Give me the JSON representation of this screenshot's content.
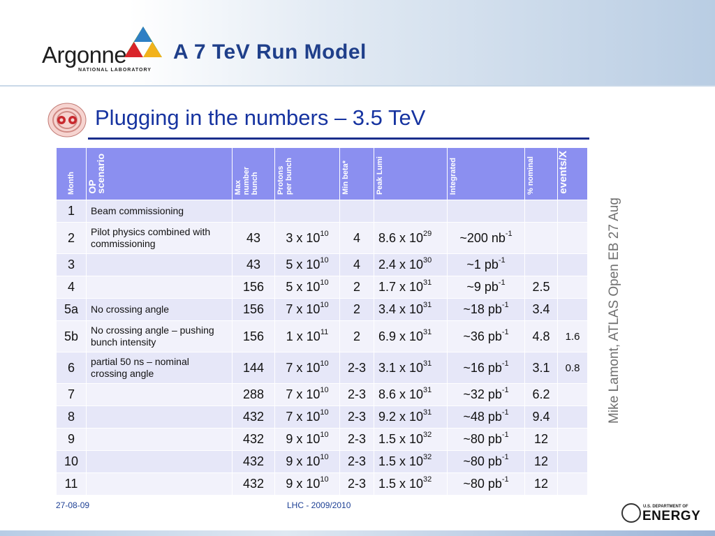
{
  "header": {
    "logo": {
      "word": "Argonne",
      "sub": "NATIONAL LABORATORY"
    },
    "title": "A 7 TeV Run Model"
  },
  "slide": {
    "subtitle": "Plugging in the numbers – 3.5 TeV"
  },
  "table": {
    "headers": [
      "Month",
      "OP scenario",
      "Max number bunch",
      "Protons per bunch",
      "Min beta*",
      "Peak Lumi",
      "Integrated",
      "% nominal",
      "events/X"
    ],
    "header_lines": [
      [
        "Month"
      ],
      [
        "OP",
        "scenario"
      ],
      [
        "Max",
        "number",
        "bunch"
      ],
      [
        "Protons",
        "per bunch"
      ],
      [
        "Min beta*"
      ],
      [
        "Peak Lumi"
      ],
      [
        "Integrated"
      ],
      [
        "% nominal"
      ],
      [
        "events/X"
      ]
    ],
    "rows": [
      {
        "month": "1",
        "scenario": "Beam commissioning",
        "max": "",
        "prot_m": "",
        "prot_e": "",
        "beta": "",
        "lumi_m": "",
        "lumi_e": "",
        "int_v": "",
        "int_u": "",
        "int_e": "",
        "pct": "",
        "ev": ""
      },
      {
        "month": "2",
        "scenario": "Pilot physics combined with commissioning",
        "max": "43",
        "prot_m": "3 x 10",
        "prot_e": "10",
        "beta": "4",
        "lumi_m": "8.6 x 10",
        "lumi_e": "29",
        "int_v": "~200 nb",
        "int_u": "",
        "int_e": "-1",
        "pct": "",
        "ev": ""
      },
      {
        "month": "3",
        "scenario": "",
        "max": "43",
        "prot_m": "5 x 10",
        "prot_e": "10",
        "beta": "4",
        "lumi_m": "2.4 x 10",
        "lumi_e": "30",
        "int_v": "~1 pb",
        "int_u": "",
        "int_e": "-1",
        "pct": "",
        "ev": ""
      },
      {
        "month": "4",
        "scenario": "",
        "max": "156",
        "prot_m": "5 x 10",
        "prot_e": "10",
        "beta": "2",
        "lumi_m": "1.7 x 10",
        "lumi_e": "31",
        "int_v": "~9 pb",
        "int_u": "",
        "int_e": "-1",
        "pct": "2.5",
        "ev": ""
      },
      {
        "month": "5a",
        "scenario": "No crossing angle",
        "max": "156",
        "prot_m": "7 x 10",
        "prot_e": "10",
        "beta": "2",
        "lumi_m": "3.4 x 10",
        "lumi_e": "31",
        "int_v": "~18 pb",
        "int_u": "",
        "int_e": "-1",
        "pct": "3.4",
        "ev": ""
      },
      {
        "month": "5b",
        "scenario": "No crossing angle – pushing bunch intensity",
        "max": "156",
        "prot_m": "1 x 10",
        "prot_e": "11",
        "beta": "2",
        "lumi_m": "6.9 x 10",
        "lumi_e": "31",
        "int_v": "~36 pb",
        "int_u": "",
        "int_e": "-1",
        "pct": "4.8",
        "ev": "1.6"
      },
      {
        "month": "6",
        "scenario": "partial 50 ns – nominal crossing angle",
        "max": "144",
        "prot_m": "7 x 10",
        "prot_e": "10",
        "beta": "2-3",
        "lumi_m": "3.1 x 10",
        "lumi_e": "31",
        "int_v": "~16 pb",
        "int_u": "",
        "int_e": "-1",
        "pct": "3.1",
        "ev": "0.8"
      },
      {
        "month": "7",
        "scenario": "",
        "max": "288",
        "prot_m": "7 x 10",
        "prot_e": "10",
        "beta": "2-3",
        "lumi_m": "8.6 x 10",
        "lumi_e": "31",
        "int_v": "~32 pb",
        "int_u": "",
        "int_e": "-1",
        "pct": "6.2",
        "ev": ""
      },
      {
        "month": "8",
        "scenario": "",
        "max": "432",
        "prot_m": "7 x 10",
        "prot_e": "10",
        "beta": "2-3",
        "lumi_m": "9.2 x 10",
        "lumi_e": "31",
        "int_v": "~48 pb",
        "int_u": "",
        "int_e": "-1",
        "pct": "9.4",
        "ev": ""
      },
      {
        "month": "9",
        "scenario": "",
        "max": "432",
        "prot_m": "9 x 10",
        "prot_e": "10",
        "beta": "2-3",
        "lumi_m": "1.5 x 10",
        "lumi_e": "32",
        "int_v": "~80 pb",
        "int_u": "",
        "int_e": "-1",
        "pct": "12",
        "ev": ""
      },
      {
        "month": "10",
        "scenario": "",
        "max": "432",
        "prot_m": "9 x 10",
        "prot_e": "10",
        "beta": "2-3",
        "lumi_m": "1.5 x 10",
        "lumi_e": "32",
        "int_v": "~80 pb",
        "int_u": "",
        "int_e": "-1",
        "pct": "12",
        "ev": ""
      },
      {
        "month": "11",
        "scenario": "",
        "max": "432",
        "prot_m": "9 x 10",
        "prot_e": "10",
        "beta": "2-3",
        "lumi_m": "1.5 x 10",
        "lumi_e": "32",
        "int_v": "~80 pb",
        "int_u": "",
        "int_e": "-1",
        "pct": "12",
        "ev": ""
      }
    ]
  },
  "side_note": "Mike Lamont, ATLAS Open EB 27 Aug",
  "footer": {
    "date": "27-08-09",
    "center": "LHC - 2009/2010",
    "doe_small": "U.S. DEPARTMENT OF",
    "doe_big": "ENERGY"
  },
  "colors": {
    "title": "#1f3f8a",
    "subtitle": "#1633a0",
    "table_header": "#8b8ff0",
    "row_odd": "#e6e7f8",
    "row_even": "#f2f2fb"
  }
}
